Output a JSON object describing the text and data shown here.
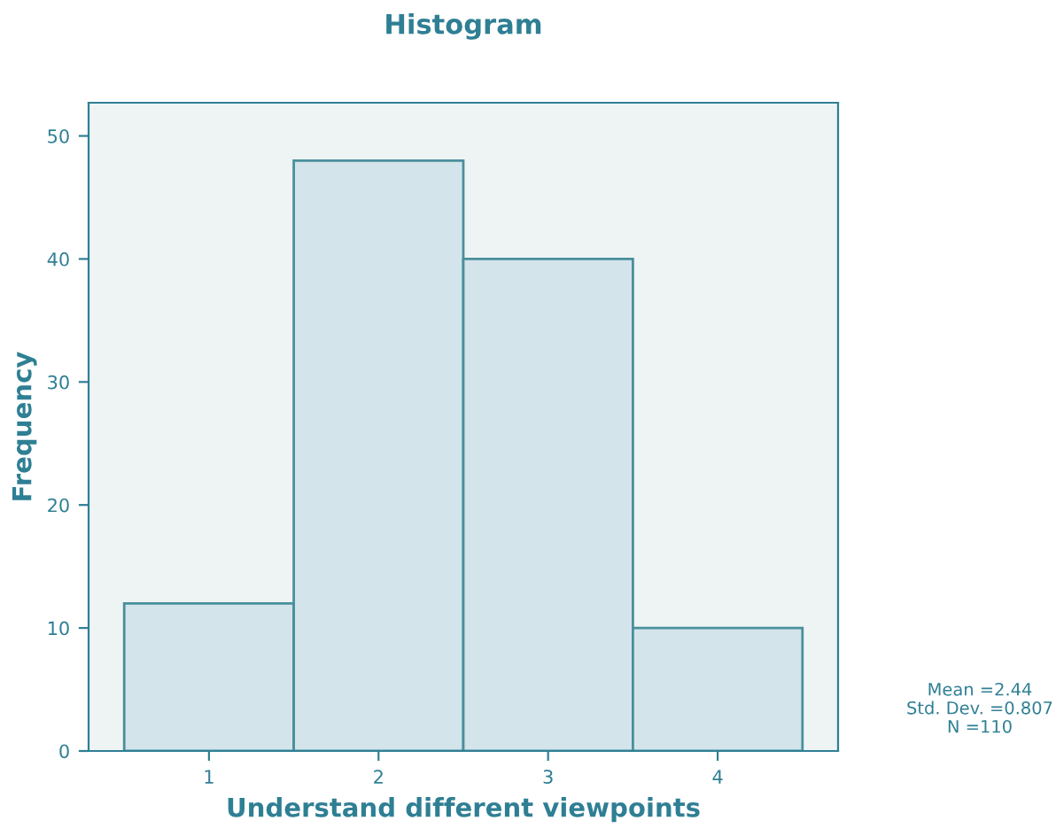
{
  "chart_data": {
    "type": "histogram",
    "title": "Histogram",
    "xlabel": "Understand different viewpoints",
    "ylabel": "Frequency",
    "bins": [
      0.5,
      1.5,
      2.5,
      3.5,
      4.5
    ],
    "values": [
      12,
      48,
      40,
      10
    ],
    "color": "#d3e4ea",
    "xlim": [
      0.29,
      4.71
    ],
    "xticks": [
      1,
      2,
      3,
      4
    ],
    "ylim": [
      0,
      52.7
    ],
    "yticks": [
      0,
      10,
      20,
      30,
      40,
      50
    ],
    "grid": false,
    "annotations": [
      "Mean =2.44",
      "Std. Dev. =0.807",
      "N =110"
    ]
  }
}
